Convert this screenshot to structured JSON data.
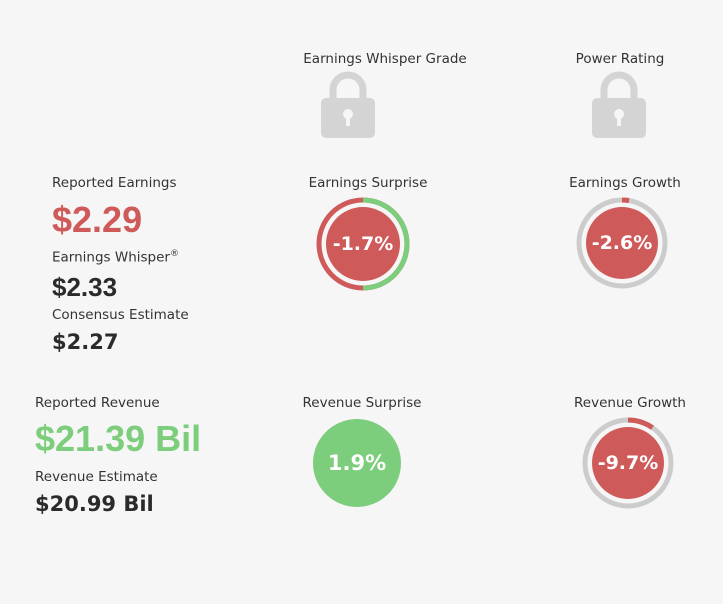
{
  "grades": {
    "whisper_grade_label": "Earnings Whisper Grade",
    "power_rating_label": "Power Rating"
  },
  "earnings": {
    "reported_label": "Reported Earnings",
    "reported_value": "$2.29",
    "whisper_label": "Earnings Whisper",
    "whisper_mark": "®",
    "whisper_value": "$2.33",
    "consensus_label": "Consensus Estimate",
    "consensus_value": "$2.27",
    "surprise_label": "Earnings Surprise",
    "surprise_value": "-1.7%",
    "growth_label": "Earnings Growth",
    "growth_value": "-2.6%"
  },
  "revenue": {
    "reported_label": "Reported Revenue",
    "reported_value": "$21.39 Bil",
    "estimate_label": "Revenue Estimate",
    "estimate_value": "$20.99 Bil",
    "surprise_label": "Revenue Surprise",
    "surprise_value": "1.9%",
    "growth_label": "Revenue Growth",
    "growth_value": "-9.7%"
  },
  "gauges": {
    "earnings_surprise": {
      "percent": -1.7,
      "fill": "#cf5a5a",
      "ring_fraction": 0.5,
      "ring_color": "#7ccd7c"
    },
    "earnings_growth": {
      "percent": -2.6,
      "fill": "#cf5a5a",
      "ring_fraction": 0.026,
      "ring_color": "#cf5a5a"
    },
    "revenue_surprise": {
      "percent": 1.9,
      "fill": "#7ccd7c"
    },
    "revenue_growth": {
      "percent": -9.7,
      "fill": "#cf5a5a",
      "ring_fraction": 0.097,
      "ring_color": "#cf5a5a"
    }
  },
  "colors": {
    "negative": "#cf5a5a",
    "positive": "#7ccd7c",
    "track": "#cccccc",
    "lock": "#d4d4d4"
  },
  "icons": [
    "lock-icon",
    "lock-icon"
  ]
}
